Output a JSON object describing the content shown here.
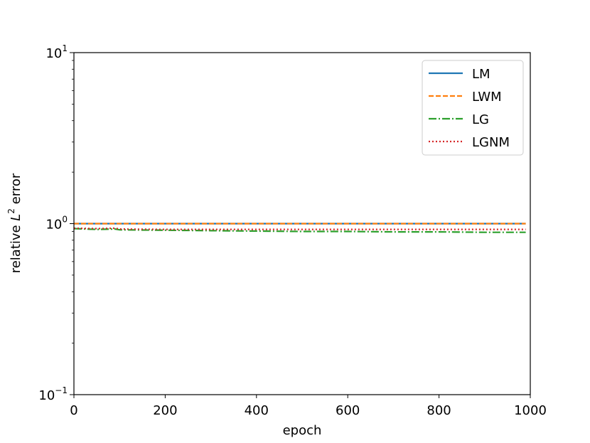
{
  "chart_data": {
    "type": "line",
    "xlabel": "epoch",
    "ylabel": {
      "prefix": "relative ",
      "var": "L",
      "sup": "2",
      "suffix": " error"
    },
    "xlim": [
      0,
      1000
    ],
    "ylim": [
      0.1,
      10
    ],
    "yscale": "log",
    "grid": false,
    "legend_position": "top-right",
    "x_ticks": [
      {
        "value": 0,
        "label": "0"
      },
      {
        "value": 200,
        "label": "200"
      },
      {
        "value": 400,
        "label": "400"
      },
      {
        "value": 600,
        "label": "600"
      },
      {
        "value": 800,
        "label": "800"
      },
      {
        "value": 1000,
        "label": "1000"
      }
    ],
    "y_ticks": [
      {
        "value": 0.1,
        "base": "10",
        "exp": "−1"
      },
      {
        "value": 1,
        "base": "10",
        "exp": "0"
      },
      {
        "value": 10,
        "base": "10",
        "exp": "1"
      }
    ],
    "series": [
      {
        "name": "LM",
        "color": "#1f77b4",
        "style": "solid",
        "x": [
          0,
          100,
          200,
          300,
          400,
          500,
          600,
          700,
          800,
          900,
          990
        ],
        "y": [
          1.0,
          1.0,
          1.0,
          1.0,
          1.0,
          1.0,
          1.0,
          1.0,
          1.0,
          1.0,
          1.0
        ]
      },
      {
        "name": "LWM",
        "color": "#ff7f0e",
        "style": "dashed",
        "x": [
          0,
          100,
          200,
          300,
          400,
          500,
          600,
          700,
          800,
          900,
          990
        ],
        "y": [
          1.0,
          1.0,
          1.0,
          1.0,
          1.0,
          1.0,
          1.0,
          1.0,
          1.0,
          1.0,
          1.0
        ]
      },
      {
        "name": "LG",
        "color": "#2ca02c",
        "style": "dashdot",
        "x": [
          0,
          50,
          90,
          100,
          200,
          300,
          400,
          500,
          600,
          700,
          800,
          900,
          990
        ],
        "y": [
          0.935,
          0.925,
          0.93,
          0.92,
          0.915,
          0.91,
          0.905,
          0.9,
          0.9,
          0.895,
          0.895,
          0.89,
          0.89
        ]
      },
      {
        "name": "LGNM",
        "color": "#d62728",
        "style": "dotted",
        "x": [
          0,
          50,
          90,
          100,
          200,
          300,
          400,
          500,
          600,
          700,
          800,
          900,
          990
        ],
        "y": [
          0.94,
          0.935,
          0.94,
          0.93,
          0.925,
          0.925,
          0.925,
          0.925,
          0.925,
          0.925,
          0.925,
          0.925,
          0.925
        ]
      }
    ]
  }
}
